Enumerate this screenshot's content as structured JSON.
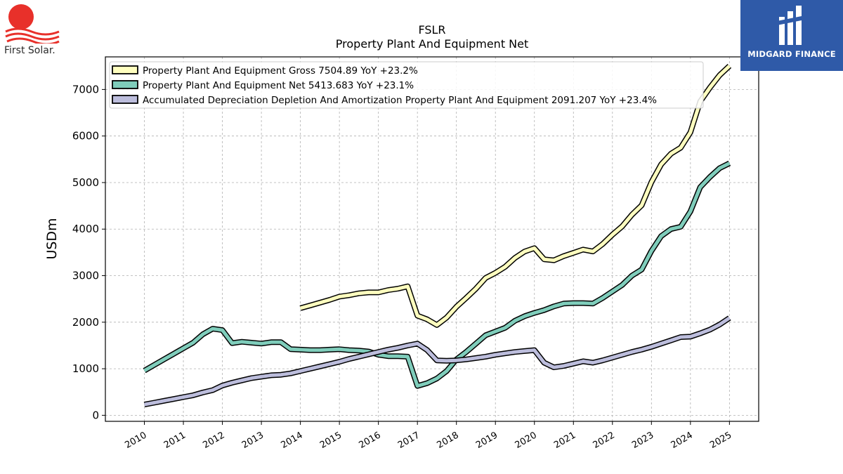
{
  "brand": {
    "left_logo_text": "First Solar.",
    "right_logo_text": "MIDGARD FINANCE"
  },
  "chart_data": {
    "type": "line",
    "title": "FSLR",
    "subtitle": "Property Plant And Equipment Net",
    "ylabel": "USDm",
    "xlabel": "",
    "ylim": [
      -130,
      7700
    ],
    "xlim": [
      2009.0,
      2025.75
    ],
    "yticks": [
      0,
      1000,
      2000,
      3000,
      4000,
      5000,
      6000,
      7000
    ],
    "xticks": [
      "2010",
      "2011",
      "2012",
      "2013",
      "2014",
      "2015",
      "2016",
      "2017",
      "2018",
      "2019",
      "2020",
      "2021",
      "2022",
      "2023",
      "2024",
      "2025"
    ],
    "grid": true,
    "legend_position": "top-left",
    "series": [
      {
        "name": "Property Plant And Equipment Gross",
        "legend_label": "Property Plant And Equipment Gross  7504.89 YoY +23.2%",
        "color": "#ffffbf",
        "points": [
          [
            2014.0,
            2300
          ],
          [
            2014.25,
            2360
          ],
          [
            2014.5,
            2420
          ],
          [
            2014.75,
            2480
          ],
          [
            2015.0,
            2550
          ],
          [
            2015.25,
            2580
          ],
          [
            2015.5,
            2620
          ],
          [
            2015.75,
            2640
          ],
          [
            2016.0,
            2640
          ],
          [
            2016.25,
            2690
          ],
          [
            2016.5,
            2720
          ],
          [
            2016.75,
            2770
          ],
          [
            2017.0,
            2140
          ],
          [
            2017.25,
            2060
          ],
          [
            2017.5,
            1940
          ],
          [
            2017.75,
            2100
          ],
          [
            2018.0,
            2330
          ],
          [
            2018.25,
            2520
          ],
          [
            2018.5,
            2720
          ],
          [
            2018.75,
            2950
          ],
          [
            2019.0,
            3060
          ],
          [
            2019.25,
            3190
          ],
          [
            2019.5,
            3380
          ],
          [
            2019.75,
            3520
          ],
          [
            2020.0,
            3590
          ],
          [
            2020.25,
            3350
          ],
          [
            2020.5,
            3330
          ],
          [
            2020.75,
            3420
          ],
          [
            2021.0,
            3490
          ],
          [
            2021.25,
            3560
          ],
          [
            2021.5,
            3520
          ],
          [
            2021.75,
            3680
          ],
          [
            2022.0,
            3880
          ],
          [
            2022.25,
            4060
          ],
          [
            2022.5,
            4310
          ],
          [
            2022.75,
            4510
          ],
          [
            2023.0,
            5010
          ],
          [
            2023.25,
            5390
          ],
          [
            2023.5,
            5620
          ],
          [
            2023.75,
            5750
          ],
          [
            2024.0,
            6080
          ],
          [
            2024.25,
            6740
          ],
          [
            2024.5,
            7040
          ],
          [
            2024.75,
            7310
          ],
          [
            2025.0,
            7505
          ]
        ]
      },
      {
        "name": "Property Plant And Equipment Net",
        "legend_label": "Property Plant And Equipment Net  5413.683 YoY +23.1%",
        "color": "#7fcdbb",
        "points": [
          [
            2010.0,
            960
          ],
          [
            2010.25,
            1080
          ],
          [
            2010.5,
            1200
          ],
          [
            2010.75,
            1320
          ],
          [
            2011.0,
            1440
          ],
          [
            2011.25,
            1560
          ],
          [
            2011.5,
            1740
          ],
          [
            2011.75,
            1860
          ],
          [
            2012.0,
            1830
          ],
          [
            2012.25,
            1550
          ],
          [
            2012.5,
            1580
          ],
          [
            2012.75,
            1560
          ],
          [
            2013.0,
            1540
          ],
          [
            2013.25,
            1570
          ],
          [
            2013.5,
            1570
          ],
          [
            2013.75,
            1420
          ],
          [
            2014.0,
            1410
          ],
          [
            2014.25,
            1400
          ],
          [
            2014.5,
            1400
          ],
          [
            2014.75,
            1410
          ],
          [
            2015.0,
            1420
          ],
          [
            2015.25,
            1400
          ],
          [
            2015.5,
            1390
          ],
          [
            2015.75,
            1370
          ],
          [
            2016.0,
            1300
          ],
          [
            2016.25,
            1270
          ],
          [
            2016.5,
            1270
          ],
          [
            2016.75,
            1260
          ],
          [
            2017.0,
            630
          ],
          [
            2017.25,
            690
          ],
          [
            2017.5,
            790
          ],
          [
            2017.75,
            950
          ],
          [
            2018.0,
            1200
          ],
          [
            2018.25,
            1360
          ],
          [
            2018.5,
            1540
          ],
          [
            2018.75,
            1720
          ],
          [
            2019.0,
            1800
          ],
          [
            2019.25,
            1880
          ],
          [
            2019.5,
            2030
          ],
          [
            2019.75,
            2130
          ],
          [
            2020.0,
            2200
          ],
          [
            2020.25,
            2260
          ],
          [
            2020.5,
            2340
          ],
          [
            2020.75,
            2400
          ],
          [
            2021.0,
            2410
          ],
          [
            2021.25,
            2410
          ],
          [
            2021.5,
            2400
          ],
          [
            2021.75,
            2520
          ],
          [
            2022.0,
            2660
          ],
          [
            2022.25,
            2800
          ],
          [
            2022.5,
            3000
          ],
          [
            2022.75,
            3130
          ],
          [
            2023.0,
            3530
          ],
          [
            2023.25,
            3850
          ],
          [
            2023.5,
            4000
          ],
          [
            2023.75,
            4050
          ],
          [
            2024.0,
            4380
          ],
          [
            2024.25,
            4900
          ],
          [
            2024.5,
            5120
          ],
          [
            2024.75,
            5310
          ],
          [
            2025.0,
            5414
          ]
        ]
      },
      {
        "name": "Accumulated Depreciation Depletion And Amortization Property Plant And Equipment",
        "legend_label": "Accumulated Depreciation Depletion And Amortization Property Plant And Equipment  2091.207 YoY +23.4%",
        "color": "#bcbddc",
        "points": [
          [
            2010.0,
            230
          ],
          [
            2010.25,
            270
          ],
          [
            2010.5,
            310
          ],
          [
            2010.75,
            350
          ],
          [
            2011.0,
            390
          ],
          [
            2011.25,
            430
          ],
          [
            2011.5,
            490
          ],
          [
            2011.75,
            540
          ],
          [
            2012.0,
            640
          ],
          [
            2012.25,
            700
          ],
          [
            2012.5,
            750
          ],
          [
            2012.75,
            800
          ],
          [
            2013.0,
            830
          ],
          [
            2013.25,
            860
          ],
          [
            2013.5,
            870
          ],
          [
            2013.75,
            900
          ],
          [
            2014.0,
            950
          ],
          [
            2014.25,
            1000
          ],
          [
            2014.5,
            1050
          ],
          [
            2014.75,
            1100
          ],
          [
            2015.0,
            1150
          ],
          [
            2015.25,
            1210
          ],
          [
            2015.5,
            1260
          ],
          [
            2015.75,
            1310
          ],
          [
            2016.0,
            1360
          ],
          [
            2016.25,
            1410
          ],
          [
            2016.5,
            1450
          ],
          [
            2016.75,
            1500
          ],
          [
            2017.0,
            1540
          ],
          [
            2017.25,
            1400
          ],
          [
            2017.5,
            1180
          ],
          [
            2017.75,
            1170
          ],
          [
            2018.0,
            1180
          ],
          [
            2018.25,
            1200
          ],
          [
            2018.5,
            1230
          ],
          [
            2018.75,
            1260
          ],
          [
            2019.0,
            1300
          ],
          [
            2019.25,
            1330
          ],
          [
            2019.5,
            1360
          ],
          [
            2019.75,
            1380
          ],
          [
            2020.0,
            1400
          ],
          [
            2020.25,
            1130
          ],
          [
            2020.5,
            1030
          ],
          [
            2020.75,
            1060
          ],
          [
            2021.0,
            1110
          ],
          [
            2021.25,
            1160
          ],
          [
            2021.5,
            1130
          ],
          [
            2021.75,
            1180
          ],
          [
            2022.0,
            1240
          ],
          [
            2022.25,
            1300
          ],
          [
            2022.5,
            1360
          ],
          [
            2022.75,
            1410
          ],
          [
            2023.0,
            1470
          ],
          [
            2023.25,
            1540
          ],
          [
            2023.5,
            1610
          ],
          [
            2023.75,
            1680
          ],
          [
            2024.0,
            1690
          ],
          [
            2024.25,
            1760
          ],
          [
            2024.5,
            1840
          ],
          [
            2024.75,
            1950
          ],
          [
            2025.0,
            2091
          ]
        ]
      }
    ]
  }
}
